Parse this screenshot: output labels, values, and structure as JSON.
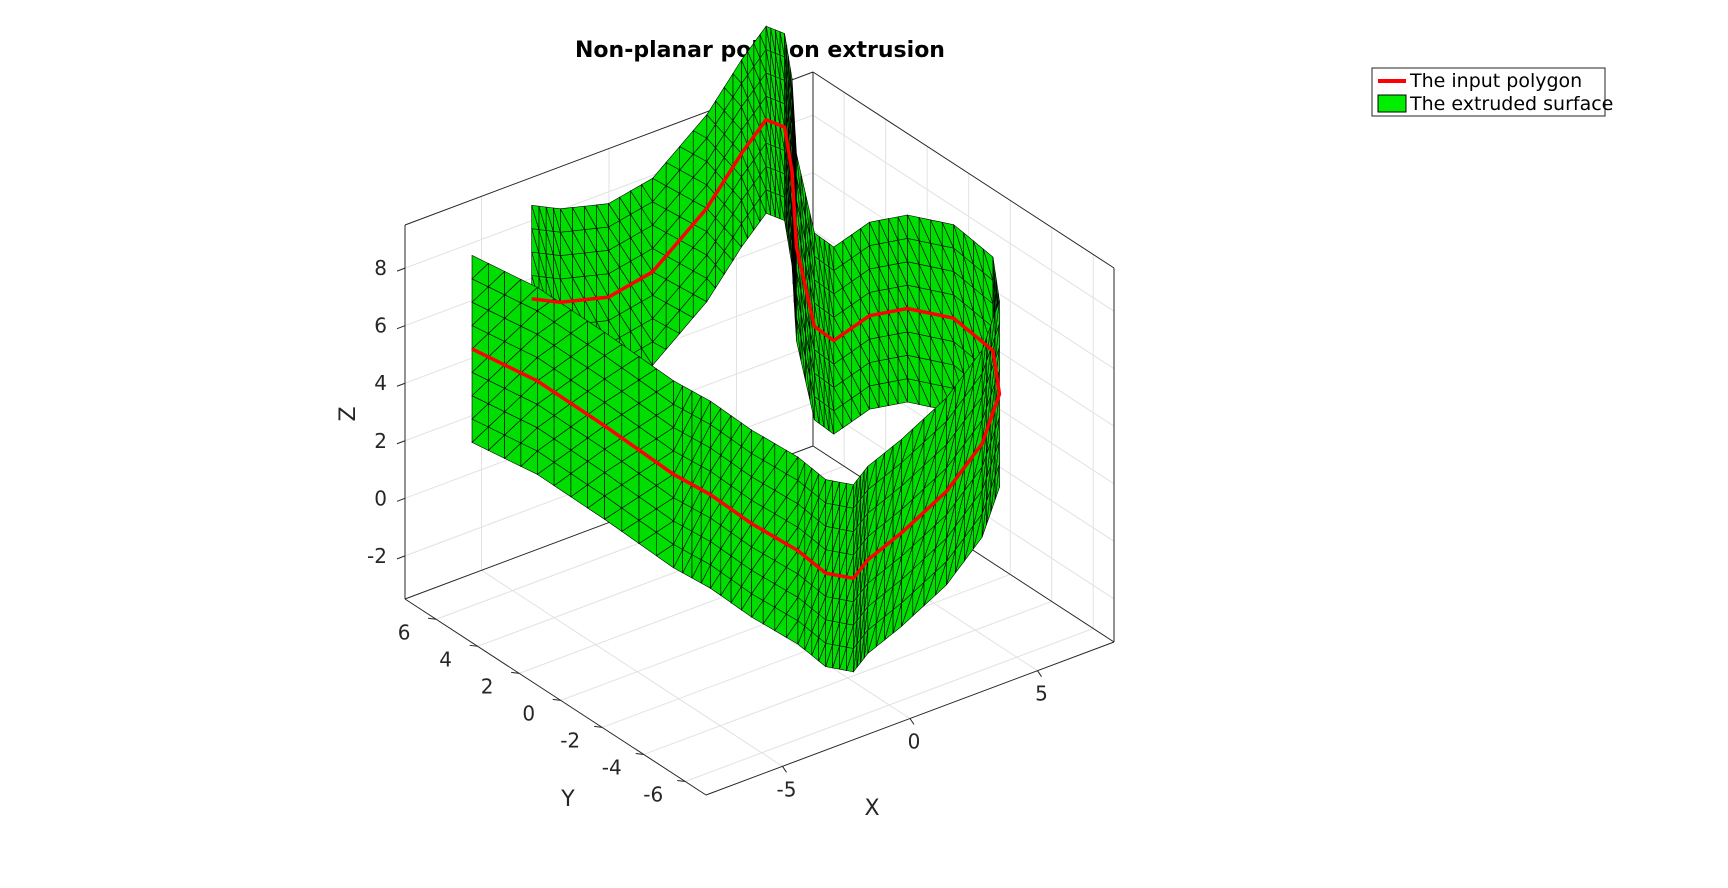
{
  "chart_data": {
    "type": "surface3d",
    "title": "Non-planar polygon extrusion",
    "xlabel": "X",
    "ylabel": "Y",
    "zlabel": "Z",
    "xlim": [
      -8,
      8
    ],
    "ylim": [
      -7,
      7.5
    ],
    "zlim": [
      -3.5,
      9.5
    ],
    "xticks": [
      -5,
      0,
      5
    ],
    "yticks": [
      -6,
      -4,
      -2,
      0,
      2,
      4,
      6
    ],
    "zticks": [
      -2,
      0,
      2,
      4,
      6,
      8
    ],
    "grid": true,
    "box": true,
    "legend": {
      "placement": "top-right",
      "entries": [
        {
          "label": "The input polygon",
          "color": "#ff0000",
          "kind": "line"
        },
        {
          "label": "The extruded surface",
          "color": "#00ee00",
          "kind": "patch"
        }
      ]
    },
    "surface_color": "#00dd00",
    "edge_color": "#000000",
    "polygon_color": "#ff0000",
    "extrusion_height": 6.5
  }
}
